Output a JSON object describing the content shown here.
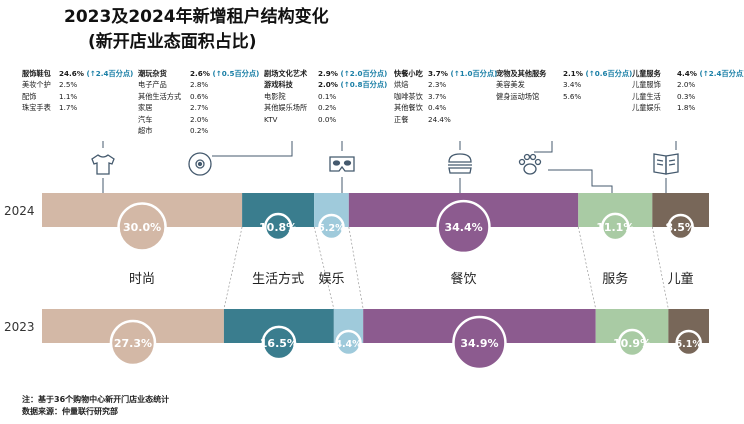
{
  "title": "2023及2024年新增租户结构变化",
  "subtitle": "(新开店业态面积占比)",
  "categories": [
    {
      "name": "服饰鞋包",
      "value": "24.6%",
      "change": "(↑2.4百分点)",
      "sub": [
        [
          "美妆个护",
          "2.5%"
        ],
        [
          "配饰",
          "1.1%"
        ],
        [
          "珠宝手表",
          "1.7%"
        ]
      ]
    },
    {
      "name": "潮玩杂货",
      "value": "2.6%",
      "change": "(↑0.5百分点)",
      "sub": [
        [
          "电子产品",
          "2.8%"
        ],
        [
          "其他生活方式",
          "0.6%"
        ],
        [
          "家居",
          "2.7%"
        ],
        [
          "汽车",
          "2.0%"
        ],
        [
          "超市",
          "0.2%"
        ]
      ]
    },
    {
      "name": "剧场文化艺术",
      "value": "2.9%",
      "change": "(↑2.0百分点)",
      "head2": [
        "游戏科技",
        "2.0%",
        "(↑0.8百分点)"
      ],
      "sub": [
        [
          "电影院",
          "0.1%"
        ],
        [
          "其他娱乐场所",
          "0.2%"
        ],
        [
          "KTV",
          "0.0%"
        ]
      ]
    },
    {
      "name": "快餐小吃",
      "value": "3.7%",
      "change": "(↑1.0百分点)",
      "sub": [
        [
          "烘焙",
          "2.3%"
        ],
        [
          "咖啡茶饮",
          "3.7%"
        ],
        [
          "其他餐饮",
          "0.4%"
        ],
        [
          "正餐",
          "24.4%"
        ]
      ]
    },
    {
      "name": "宠物及其他服务",
      "value": "2.1%",
      "change": "(↑0.6百分点)",
      "sub": [
        [
          "美容美发",
          "3.4%"
        ],
        [
          "健身运动场馆",
          "5.6%"
        ]
      ]
    },
    {
      "name": "儿童服务",
      "value": "4.4%",
      "change": "(↑2.4百分点)",
      "sub": [
        [
          "儿童服饰",
          "2.0%"
        ],
        [
          "儿童生活",
          "0.3%"
        ],
        [
          "儿童娱乐",
          "1.8%"
        ]
      ]
    }
  ],
  "chart_data": {
    "type": "bar",
    "stacked": true,
    "orientation": "horizontal",
    "categories": [
      "2024",
      "2023"
    ],
    "series": [
      {
        "name": "时尚",
        "values": [
          30.0,
          27.3
        ],
        "labels": [
          "30.0%",
          "27.3%"
        ],
        "color": "#d3b8a6"
      },
      {
        "name": "生活方式",
        "values": [
          10.8,
          16.5
        ],
        "labels": [
          "10.8%",
          "16.5%"
        ],
        "color": "#3a7d8e"
      },
      {
        "name": "娱乐",
        "values": [
          5.2,
          4.4
        ],
        "labels": [
          "5.2%",
          "4.4%"
        ],
        "color": "#9fcadb"
      },
      {
        "name": "餐饮",
        "values": [
          34.4,
          34.9
        ],
        "labels": [
          "34.4%",
          "34.9%"
        ],
        "color": "#8c5b8f"
      },
      {
        "name": "服务",
        "values": [
          11.1,
          10.9
        ],
        "labels": [
          "11.1%",
          "10.9%"
        ],
        "color": "#a9cba4"
      },
      {
        "name": "儿童",
        "values": [
          8.5,
          6.1
        ],
        "labels": [
          "8.5%",
          "6.1%"
        ],
        "color": "#786759"
      }
    ]
  },
  "icons": [
    "tshirt-icon",
    "gamepad-icon",
    "mask-icon",
    "burger-icon",
    "paw-icon",
    "book-icon"
  ],
  "footnote1": "注：基于36个购物中心新开门店业态统计",
  "footnote2": "数据来源：仲量联行研究部"
}
